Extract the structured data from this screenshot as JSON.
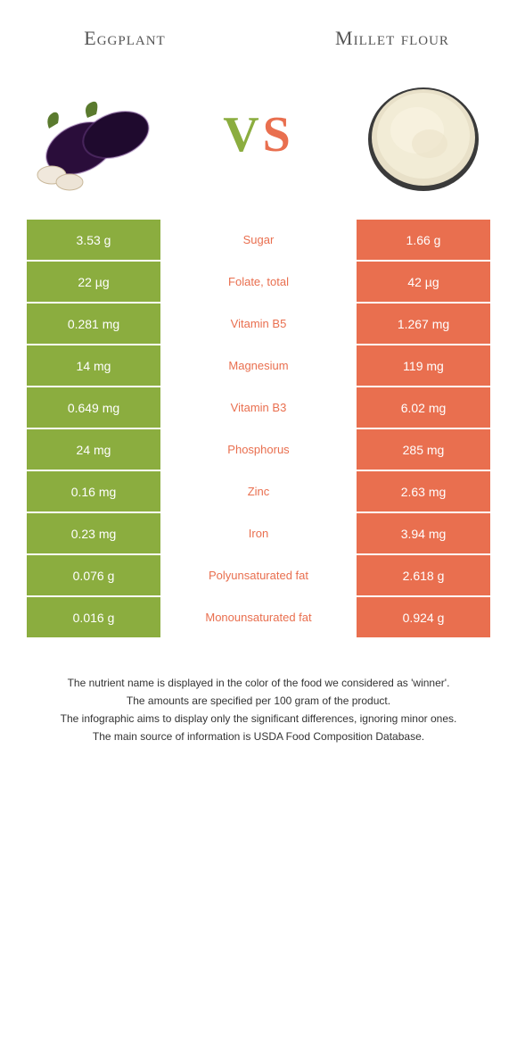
{
  "header": {
    "left_title": "Eggplant",
    "right_title": "Millet flour",
    "vs_v": "V",
    "vs_s": "S"
  },
  "colors": {
    "green": "#8bad3f",
    "orange": "#e96f4f",
    "white": "#ffffff",
    "text_dark": "#333333",
    "title_gray": "#555555"
  },
  "table": {
    "rows": [
      {
        "left": "3.53 g",
        "label": "Sugar",
        "right": "1.66 g",
        "winner": "orange"
      },
      {
        "left": "22 µg",
        "label": "Folate, total",
        "right": "42 µg",
        "winner": "orange"
      },
      {
        "left": "0.281 mg",
        "label": "Vitamin B5",
        "right": "1.267 mg",
        "winner": "orange"
      },
      {
        "left": "14 mg",
        "label": "Magnesium",
        "right": "119 mg",
        "winner": "orange"
      },
      {
        "left": "0.649 mg",
        "label": "Vitamin B3",
        "right": "6.02 mg",
        "winner": "orange"
      },
      {
        "left": "24 mg",
        "label": "Phosphorus",
        "right": "285 mg",
        "winner": "orange"
      },
      {
        "left": "0.16 mg",
        "label": "Zinc",
        "right": "2.63 mg",
        "winner": "orange"
      },
      {
        "left": "0.23 mg",
        "label": "Iron",
        "right": "3.94 mg",
        "winner": "orange"
      },
      {
        "left": "0.076 g",
        "label": "Polyunsaturated fat",
        "right": "2.618 g",
        "winner": "orange"
      },
      {
        "left": "0.016 g",
        "label": "Monounsaturated fat",
        "right": "0.924 g",
        "winner": "orange"
      }
    ]
  },
  "footer": {
    "line1": "The nutrient name is displayed in the color of the food we considered as 'winner'.",
    "line2": "The amounts are specified per 100 gram of the product.",
    "line3": "The infographic aims to display only the significant differences, ignoring minor ones.",
    "line4": "The main source of information is USDA Food Composition Database."
  }
}
